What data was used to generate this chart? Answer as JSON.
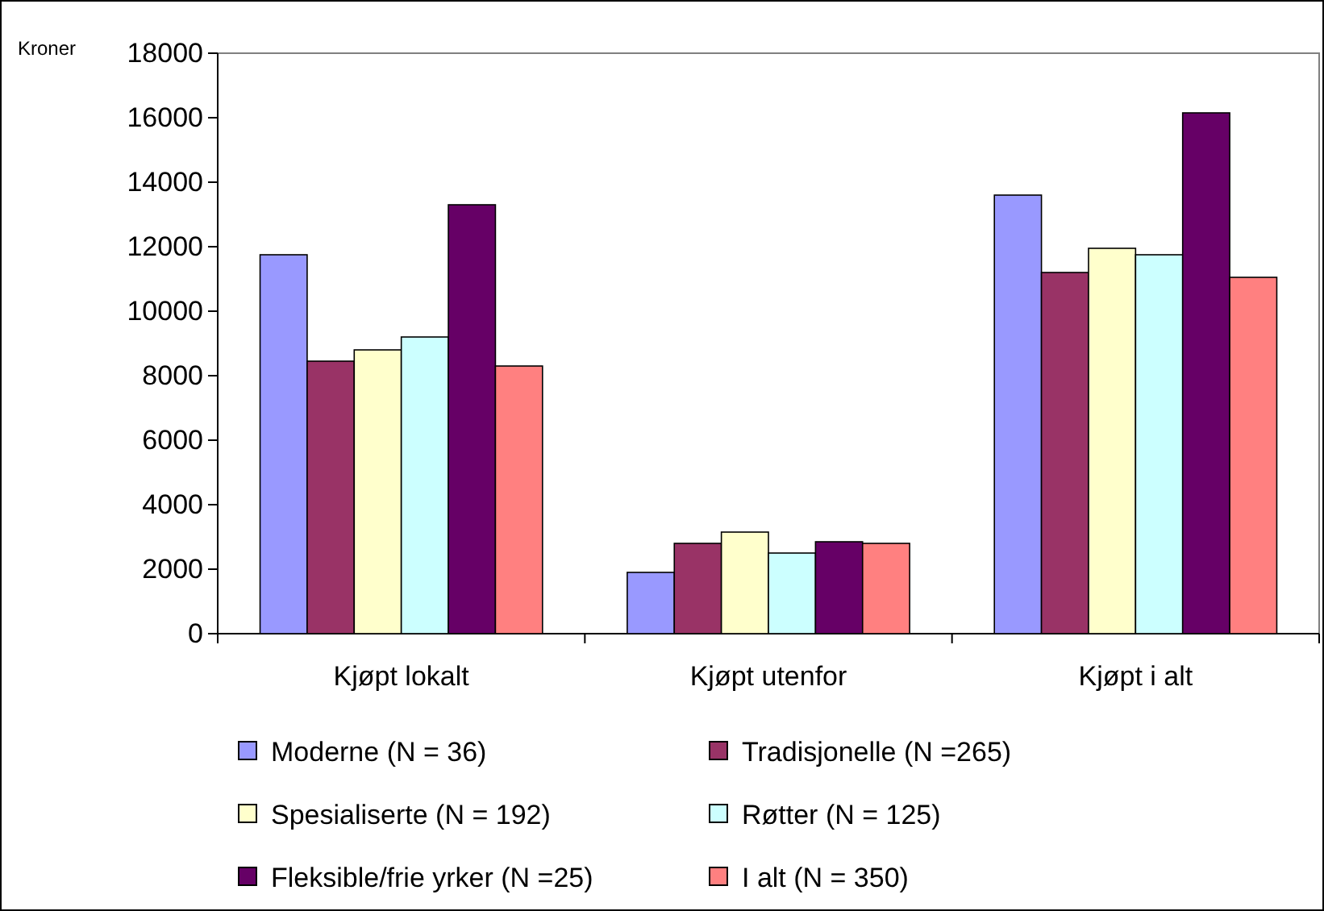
{
  "chart_data": {
    "type": "bar",
    "ylabel": "Kroner",
    "categories": [
      "Kjøpt lokalt",
      "Kjøpt utenfor",
      "Kjøpt i alt"
    ],
    "series": [
      {
        "name": "Moderne (N = 36)",
        "color": "#9999ff",
        "values": [
          11750,
          1900,
          13600
        ]
      },
      {
        "name": "Tradisjonelle (N =265)",
        "color": "#993366",
        "values": [
          8450,
          2800,
          11200
        ]
      },
      {
        "name": "Spesialiserte (N = 192)",
        "color": "#ffffcc",
        "values": [
          8800,
          3150,
          11950
        ]
      },
      {
        "name": "Røtter (N = 125)",
        "color": "#ccffff",
        "values": [
          9200,
          2500,
          11750
        ]
      },
      {
        "name": "Fleksible/frie yrker (N =25)",
        "color": "#660066",
        "values": [
          13300,
          2850,
          16150
        ]
      },
      {
        "name": "I alt (N = 350)",
        "color": "#ff8080",
        "values": [
          8300,
          2800,
          11050
        ]
      }
    ],
    "ylim": [
      0,
      18000
    ],
    "yticks": [
      0,
      2000,
      4000,
      6000,
      8000,
      10000,
      12000,
      14000,
      16000,
      18000
    ],
    "grid": false,
    "legend": "bottom"
  }
}
